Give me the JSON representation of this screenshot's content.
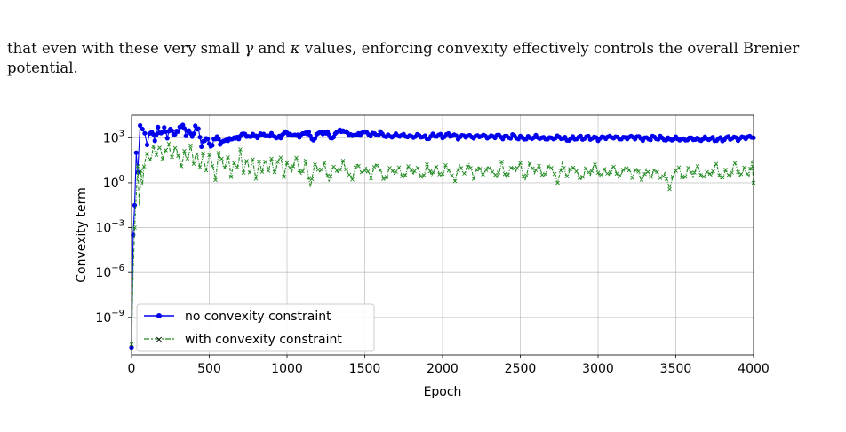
{
  "text": {
    "line1_a": "that even with these very small ",
    "gamma": "γ",
    "line1_b": " and ",
    "kappa": "κ",
    "line1_c": " values, enforcing convexity effectively controls the overall Brenier",
    "line2": "potential."
  },
  "chart_data": {
    "type": "line",
    "xlabel": "Epoch",
    "ylabel": "Convexity term",
    "xlim": [
      0,
      4000
    ],
    "ylim_log10": [
      -11.5,
      4.5
    ],
    "y_scale": "log",
    "grid": true,
    "legend_position": "lower-left",
    "x_ticks": [
      0,
      500,
      1000,
      1500,
      2000,
      2500,
      3000,
      3500,
      4000
    ],
    "y_ticks": [
      {
        "exp": 3,
        "label": "10",
        "sup": "3"
      },
      {
        "exp": 0,
        "label": "10",
        "sup": "0"
      },
      {
        "exp": -3,
        "label": "10",
        "sup": "−3"
      },
      {
        "exp": -6,
        "label": "10",
        "sup": "−6"
      },
      {
        "exp": -9,
        "label": "10",
        "sup": "−9"
      }
    ],
    "series": [
      {
        "name": "no convexity constraint",
        "color": "#0000ee",
        "style": "solid-dot",
        "points": [
          [
            0,
            -11
          ],
          [
            10,
            -3.5
          ],
          [
            20,
            -1.5
          ],
          [
            30,
            2
          ],
          [
            40,
            0.6
          ],
          [
            55,
            3.7
          ],
          [
            70,
            3.5
          ],
          [
            85,
            3.3
          ],
          [
            100,
            2.6
          ],
          [
            115,
            3.4
          ],
          [
            130,
            3.5
          ],
          [
            150,
            2.9
          ],
          [
            170,
            3.7
          ],
          [
            190,
            3.2
          ],
          [
            210,
            3.6
          ],
          [
            230,
            3.0
          ],
          [
            250,
            3.7
          ],
          [
            270,
            3.3
          ],
          [
            290,
            3.4
          ],
          [
            310,
            3.6
          ],
          [
            330,
            3.8
          ],
          [
            350,
            3.2
          ],
          [
            370,
            3.6
          ],
          [
            390,
            3.1
          ],
          [
            410,
            3.7
          ],
          [
            430,
            3.5
          ],
          [
            450,
            2.4
          ],
          [
            470,
            2.9
          ],
          [
            490,
            3.0
          ],
          [
            510,
            2.4
          ],
          [
            530,
            2.8
          ],
          [
            550,
            3.0
          ],
          [
            570,
            2.6
          ],
          [
            600,
            2.7
          ],
          [
            630,
            2.9
          ],
          [
            660,
            3.1
          ],
          [
            690,
            3.0
          ],
          [
            720,
            3.2
          ],
          [
            750,
            3.0
          ],
          [
            780,
            3.3
          ],
          [
            810,
            3.1
          ],
          [
            840,
            3.2
          ],
          [
            870,
            3.0
          ],
          [
            900,
            3.3
          ],
          [
            930,
            3.1
          ],
          [
            960,
            3.0
          ],
          [
            990,
            3.3
          ],
          [
            1020,
            3.2
          ],
          [
            1050,
            3.3
          ],
          [
            1080,
            3.1
          ],
          [
            1110,
            3.2
          ],
          [
            1140,
            3.3
          ],
          [
            1170,
            2.9
          ],
          [
            1200,
            3.4
          ],
          [
            1230,
            3.2
          ],
          [
            1260,
            3.3
          ],
          [
            1290,
            3.0
          ],
          [
            1320,
            3.5
          ],
          [
            1350,
            3.4
          ],
          [
            1380,
            3.3
          ],
          [
            1410,
            3.2
          ],
          [
            1440,
            3.3
          ],
          [
            1470,
            3.2
          ],
          [
            1500,
            3.3
          ],
          [
            1550,
            3.2
          ],
          [
            1600,
            3.3
          ],
          [
            1650,
            3.1
          ],
          [
            1700,
            3.2
          ],
          [
            1750,
            3.2
          ],
          [
            1800,
            3.1
          ],
          [
            1850,
            3.2
          ],
          [
            1900,
            3.0
          ],
          [
            1950,
            3.2
          ],
          [
            2000,
            3.1
          ],
          [
            2050,
            3.2
          ],
          [
            2100,
            3.0
          ],
          [
            2150,
            3.1
          ],
          [
            2200,
            3.0
          ],
          [
            2250,
            3.1
          ],
          [
            2300,
            3.0
          ],
          [
            2350,
            3.1
          ],
          [
            2400,
            3.0
          ],
          [
            2450,
            3.1
          ],
          [
            2500,
            3.0
          ],
          [
            2550,
            3.0
          ],
          [
            2600,
            3.1
          ],
          [
            2650,
            3.0
          ],
          [
            2700,
            3.0
          ],
          [
            2750,
            3.1
          ],
          [
            2800,
            2.9
          ],
          [
            2850,
            3.0
          ],
          [
            2900,
            3.0
          ],
          [
            2950,
            3.0
          ],
          [
            3000,
            2.9
          ],
          [
            3050,
            3.0
          ],
          [
            3100,
            3.0
          ],
          [
            3150,
            2.9
          ],
          [
            3200,
            3.0
          ],
          [
            3250,
            3.0
          ],
          [
            3300,
            2.9
          ],
          [
            3350,
            3.0
          ],
          [
            3400,
            3.0
          ],
          [
            3450,
            2.9
          ],
          [
            3500,
            3.0
          ],
          [
            3550,
            2.9
          ],
          [
            3600,
            3.0
          ],
          [
            3650,
            2.9
          ],
          [
            3700,
            3.0
          ],
          [
            3750,
            2.9
          ],
          [
            3800,
            2.9
          ],
          [
            3850,
            3.0
          ],
          [
            3900,
            2.9
          ],
          [
            3950,
            3.0
          ],
          [
            4000,
            3.0
          ]
        ]
      },
      {
        "name": "with convexity constraint",
        "color": "#228b22",
        "style": "dashdot-x",
        "points": [
          [
            0,
            -10.8
          ],
          [
            10,
            -6
          ],
          [
            20,
            -3
          ],
          [
            30,
            -0.8
          ],
          [
            40,
            1
          ],
          [
            50,
            -1.5
          ],
          [
            60,
            0.8
          ],
          [
            70,
            -0.3
          ],
          [
            80,
            1.2
          ],
          [
            100,
            2
          ],
          [
            120,
            1.5
          ],
          [
            140,
            2.3
          ],
          [
            160,
            1.8
          ],
          [
            180,
            2.4
          ],
          [
            200,
            1.7
          ],
          [
            220,
            2.2
          ],
          [
            240,
            2.5
          ],
          [
            260,
            1.6
          ],
          [
            280,
            2.3
          ],
          [
            300,
            1.9
          ],
          [
            320,
            1.2
          ],
          [
            340,
            2.1
          ],
          [
            360,
            1.5
          ],
          [
            380,
            2.4
          ],
          [
            400,
            1.3
          ],
          [
            420,
            2.0
          ],
          [
            440,
            1.1
          ],
          [
            460,
            1.9
          ],
          [
            480,
            0.7
          ],
          [
            500,
            1.8
          ],
          [
            520,
            1.2
          ],
          [
            540,
            0.3
          ],
          [
            560,
            2.0
          ],
          [
            580,
            1.5
          ],
          [
            600,
            0.9
          ],
          [
            620,
            1.7
          ],
          [
            640,
            0.5
          ],
          [
            660,
            1.4
          ],
          [
            680,
            1.0
          ],
          [
            700,
            2.1
          ],
          [
            720,
            0.6
          ],
          [
            740,
            1.5
          ],
          [
            760,
            0.8
          ],
          [
            780,
            1.6
          ],
          [
            800,
            0.2
          ],
          [
            820,
            1.3
          ],
          [
            840,
            0.7
          ],
          [
            860,
            1.5
          ],
          [
            880,
            0.9
          ],
          [
            900,
            1.6
          ],
          [
            920,
            0.6
          ],
          [
            940,
            1.3
          ],
          [
            960,
            1.7
          ],
          [
            980,
            0.5
          ],
          [
            1000,
            1.4
          ],
          [
            1030,
            0.8
          ],
          [
            1060,
            1.6
          ],
          [
            1090,
            0.4
          ],
          [
            1120,
            1.5
          ],
          [
            1150,
            -0.2
          ],
          [
            1180,
            1.2
          ],
          [
            1210,
            0.6
          ],
          [
            1240,
            1.3
          ],
          [
            1270,
            0.2
          ],
          [
            1300,
            1.1
          ],
          [
            1330,
            0.5
          ],
          [
            1360,
            1.4
          ],
          [
            1390,
            0.8
          ],
          [
            1420,
            0.3
          ],
          [
            1450,
            1.2
          ],
          [
            1480,
            0.6
          ],
          [
            1510,
            1.1
          ],
          [
            1540,
            0.4
          ],
          [
            1570,
            1.2
          ],
          [
            1600,
            0.7
          ],
          [
            1630,
            0.2
          ],
          [
            1660,
            1.1
          ],
          [
            1690,
            0.5
          ],
          [
            1720,
            0.9
          ],
          [
            1750,
            0.3
          ],
          [
            1780,
            1.2
          ],
          [
            1810,
            0.6
          ],
          [
            1840,
            0.9
          ],
          [
            1870,
            0.2
          ],
          [
            1900,
            1.3
          ],
          [
            1930,
            0.5
          ],
          [
            1960,
            1.0
          ],
          [
            1990,
            0.3
          ],
          [
            2020,
            1.2
          ],
          [
            2050,
            0.7
          ],
          [
            2080,
            0.1
          ],
          [
            2110,
            1.1
          ],
          [
            2140,
            0.6
          ],
          [
            2170,
            1.4
          ],
          [
            2200,
            0.3
          ],
          [
            2230,
            1.0
          ],
          [
            2260,
            0.5
          ],
          [
            2290,
            1.2
          ],
          [
            2320,
            0.8
          ],
          [
            2350,
            0.2
          ],
          [
            2380,
            1.3
          ],
          [
            2410,
            0.4
          ],
          [
            2440,
            1.1
          ],
          [
            2470,
            0.7
          ],
          [
            2500,
            1.2
          ],
          [
            2530,
            0.2
          ],
          [
            2560,
            1.4
          ],
          [
            2590,
            0.6
          ],
          [
            2620,
            1.0
          ],
          [
            2650,
            0.4
          ],
          [
            2680,
            1.2
          ],
          [
            2710,
            0.8
          ],
          [
            2740,
            -0.1
          ],
          [
            2770,
            1.3
          ],
          [
            2800,
            0.5
          ],
          [
            2830,
            1.1
          ],
          [
            2860,
            0.7
          ],
          [
            2890,
            0.1
          ],
          [
            2920,
            1.0
          ],
          [
            2950,
            0.6
          ],
          [
            2980,
            1.2
          ],
          [
            3010,
            0.3
          ],
          [
            3040,
            0.9
          ],
          [
            3070,
            0.6
          ],
          [
            3100,
            1.1
          ],
          [
            3130,
            0.2
          ],
          [
            3160,
            0.8
          ],
          [
            3190,
            1.2
          ],
          [
            3220,
            0.4
          ],
          [
            3250,
            0.9
          ],
          [
            3280,
            0.1
          ],
          [
            3310,
            1.0
          ],
          [
            3340,
            0.5
          ],
          [
            3370,
            0.8
          ],
          [
            3400,
            0.2
          ],
          [
            3430,
            0.7
          ],
          [
            3460,
            -0.3
          ],
          [
            3490,
            0.6
          ],
          [
            3520,
            0.9
          ],
          [
            3550,
            0.2
          ],
          [
            3580,
            1.1
          ],
          [
            3610,
            0.4
          ],
          [
            3640,
            1.0
          ],
          [
            3670,
            0.3
          ],
          [
            3700,
            0.8
          ],
          [
            3730,
            0.5
          ],
          [
            3760,
            1.2
          ],
          [
            3790,
            0.1
          ],
          [
            3820,
            0.9
          ],
          [
            3850,
            0.4
          ],
          [
            3880,
            1.3
          ],
          [
            3910,
            0.3
          ],
          [
            3940,
            1.0
          ],
          [
            3970,
            0.5
          ],
          [
            3990,
            1.5
          ],
          [
            4000,
            0.0
          ]
        ]
      }
    ]
  }
}
